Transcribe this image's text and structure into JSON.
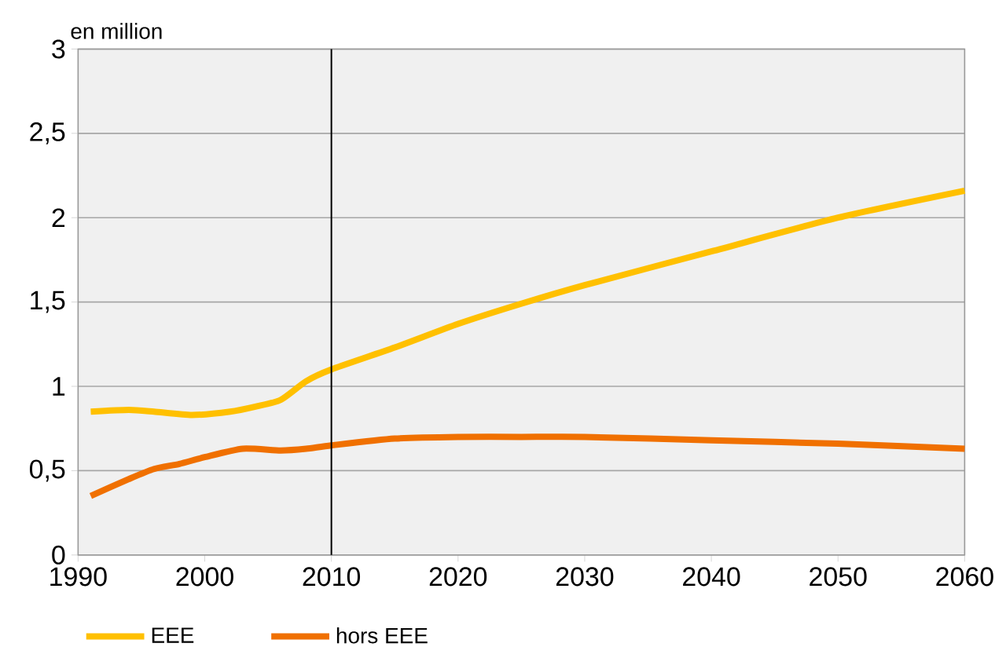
{
  "chart_data": {
    "type": "line",
    "ylabel": "en million",
    "xlim": [
      1990,
      2060
    ],
    "ylim": [
      0,
      3
    ],
    "xticks": [
      1990,
      2000,
      2010,
      2020,
      2030,
      2040,
      2050,
      2060
    ],
    "yticks": [
      0,
      {
        "value": 0.5,
        "label": "0,5"
      },
      1,
      {
        "value": 1.5,
        "label": "1,5"
      },
      2,
      {
        "value": 2.5,
        "label": "2,5"
      },
      3
    ],
    "grid": "y",
    "legend": "bottom",
    "line_style": "solid",
    "marker": "none",
    "ref_lines": [
      {
        "axis": "x",
        "value": 2010,
        "color": "#000000"
      }
    ],
    "series": [
      {
        "name": "EEE",
        "color": "#ffc000",
        "x": [
          1991,
          1994,
          1996,
          1999,
          2002,
          2004,
          2006,
          2008,
          2010,
          2015,
          2020,
          2025,
          2030,
          2040,
          2050,
          2060
        ],
        "values": [
          0.85,
          0.86,
          0.85,
          0.83,
          0.85,
          0.88,
          0.92,
          1.03,
          1.1,
          1.23,
          1.37,
          1.49,
          1.6,
          1.8,
          2.0,
          2.16
        ]
      },
      {
        "name": "hors EEE",
        "color": "#f07000",
        "x": [
          1991,
          1994,
          1996,
          1998,
          2000,
          2003,
          2006,
          2008,
          2010,
          2015,
          2020,
          2025,
          2030,
          2040,
          2050,
          2060
        ],
        "values": [
          0.35,
          0.45,
          0.51,
          0.54,
          0.58,
          0.63,
          0.62,
          0.63,
          0.65,
          0.69,
          0.7,
          0.7,
          0.7,
          0.68,
          0.66,
          0.63
        ]
      }
    ]
  }
}
